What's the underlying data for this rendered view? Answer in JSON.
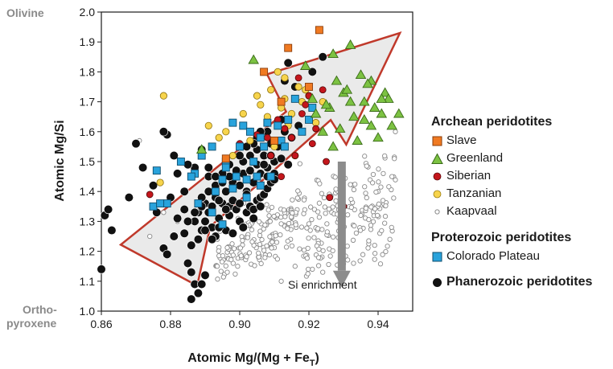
{
  "chart_data": {
    "type": "scatter",
    "xlabel_main": "Atomic Mg/(Mg + Fe",
    "xlabel_sub": "T",
    "xlabel_close": ")",
    "ylabel": "Atomic Mg/Si",
    "xlim": [
      0.86,
      0.95
    ],
    "ylim": [
      1.0,
      2.0
    ],
    "xticks": [
      "0.86",
      "0.88",
      "0.90",
      "0.92",
      "0.94"
    ],
    "yticks": [
      "1.0",
      "1.1",
      "1.2",
      "1.3",
      "1.4",
      "1.5",
      "1.6",
      "1.7",
      "1.8",
      "1.9",
      "2.0"
    ],
    "end_labels": {
      "olivine": "Olivine",
      "ortho_line1": "Ortho-",
      "ortho_line2": "pyroxene"
    },
    "annotation": "Si enrichment",
    "grid": false,
    "legend_position": "right",
    "colors": {
      "slave": "#f07a22",
      "greenland": "#7cc242",
      "siberian": "#c4161c",
      "tanzanian": "#f7d44c",
      "kaapvaal": "#9e9e9e",
      "colorado": "#29a3dc",
      "phanerozoic": "#111111",
      "arrow_outline": "#c0392b",
      "arrow_fill": "#e6e6e6",
      "si_arrow": "#8c8c8c"
    },
    "series": [
      {
        "name": "Slave",
        "marker": "square",
        "points": [
          [
            0.923,
            1.94
          ],
          [
            0.914,
            1.88
          ],
          [
            0.907,
            1.8
          ],
          [
            0.912,
            1.7
          ],
          [
            0.91,
            1.57
          ],
          [
            0.92,
            1.75
          ],
          [
            0.896,
            1.51
          ]
        ]
      },
      {
        "name": "Greenland",
        "marker": "triangle",
        "points": [
          [
            0.932,
            1.89
          ],
          [
            0.927,
            1.86
          ],
          [
            0.904,
            1.84
          ],
          [
            0.919,
            1.82
          ],
          [
            0.935,
            1.79
          ],
          [
            0.938,
            1.77
          ],
          [
            0.942,
            1.73
          ],
          [
            0.93,
            1.73
          ],
          [
            0.936,
            1.7
          ],
          [
            0.939,
            1.68
          ],
          [
            0.941,
            1.66
          ],
          [
            0.944,
            1.62
          ],
          [
            0.933,
            1.65
          ],
          [
            0.929,
            1.61
          ],
          [
            0.938,
            1.62
          ],
          [
            0.926,
            1.68
          ],
          [
            0.934,
            1.57
          ],
          [
            0.924,
            1.6
          ],
          [
            0.94,
            1.58
          ],
          [
            0.946,
            1.66
          ],
          [
            0.931,
            1.74
          ],
          [
            0.937,
            1.76
          ],
          [
            0.925,
            1.69
          ],
          [
            0.922,
            1.66
          ],
          [
            0.943,
            1.71
          ],
          [
            0.936,
            1.64
          ],
          [
            0.928,
            1.77
          ],
          [
            0.921,
            1.71
          ],
          [
            0.889,
            1.54
          ],
          [
            0.927,
            1.55
          ],
          [
            0.932,
            1.7
          ],
          [
            0.941,
            1.71
          ]
        ]
      },
      {
        "name": "Siberian",
        "marker": "circle",
        "points": [
          [
            0.874,
            1.39
          ],
          [
            0.917,
            1.78
          ],
          [
            0.92,
            1.72
          ],
          [
            0.911,
            1.64
          ],
          [
            0.922,
            1.61
          ],
          [
            0.905,
            1.59
          ],
          [
            0.915,
            1.58
          ],
          [
            0.916,
            1.52
          ],
          [
            0.912,
            1.45
          ],
          [
            0.926,
            1.38
          ],
          [
            0.93,
            1.35
          ],
          [
            0.925,
            1.5
          ],
          [
            0.908,
            1.58
          ],
          [
            0.924,
            1.74
          ],
          [
            0.918,
            1.66
          ],
          [
            0.9,
            1.56
          ],
          [
            0.913,
            1.61
          ],
          [
            0.909,
            1.52
          ],
          [
            0.921,
            1.56
          ],
          [
            0.919,
            1.69
          ]
        ]
      },
      {
        "name": "Tanzanian",
        "marker": "circle",
        "points": [
          [
            0.911,
            1.8
          ],
          [
            0.913,
            1.78
          ],
          [
            0.917,
            1.75
          ],
          [
            0.909,
            1.74
          ],
          [
            0.913,
            1.71
          ],
          [
            0.918,
            1.7
          ],
          [
            0.906,
            1.69
          ],
          [
            0.901,
            1.66
          ],
          [
            0.891,
            1.62
          ],
          [
            0.894,
            1.58
          ],
          [
            0.903,
            1.57
          ],
          [
            0.91,
            1.55
          ],
          [
            0.916,
            1.52
          ],
          [
            0.878,
            1.72
          ],
          [
            0.877,
            1.43
          ],
          [
            0.92,
            1.72
          ],
          [
            0.908,
            1.65
          ],
          [
            0.896,
            1.6
          ],
          [
            0.922,
            1.63
          ],
          [
            0.914,
            1.62
          ],
          [
            0.905,
            1.72
          ],
          [
            0.919,
            1.74
          ],
          [
            0.898,
            1.52
          ],
          [
            0.912,
            1.68
          ],
          [
            0.924,
            1.7
          ],
          [
            0.915,
            1.66
          ]
        ]
      },
      {
        "name": "Kaapvaal",
        "marker": "ring",
        "points": []
      },
      {
        "name": "Colorado Plateau",
        "marker": "square",
        "points": [
          [
            0.876,
            1.47
          ],
          [
            0.875,
            1.35
          ],
          [
            0.879,
            1.36
          ],
          [
            0.877,
            1.36
          ],
          [
            0.883,
            1.5
          ],
          [
            0.887,
            1.46
          ],
          [
            0.889,
            1.52
          ],
          [
            0.892,
            1.55
          ],
          [
            0.896,
            1.5
          ],
          [
            0.898,
            1.63
          ],
          [
            0.901,
            1.62
          ],
          [
            0.903,
            1.6
          ],
          [
            0.906,
            1.58
          ],
          [
            0.908,
            1.63
          ],
          [
            0.911,
            1.62
          ],
          [
            0.914,
            1.64
          ],
          [
            0.916,
            1.71
          ],
          [
            0.921,
            1.68
          ],
          [
            0.896,
            1.48
          ],
          [
            0.9,
            1.55
          ],
          [
            0.898,
            1.41
          ],
          [
            0.892,
            1.33
          ],
          [
            0.895,
            1.29
          ],
          [
            0.902,
            1.38
          ],
          [
            0.905,
            1.45
          ],
          [
            0.909,
            1.45
          ],
          [
            0.912,
            1.57
          ],
          [
            0.886,
            1.45
          ],
          [
            0.895,
            1.44
          ],
          [
            0.904,
            1.5
          ],
          [
            0.907,
            1.55
          ],
          [
            0.913,
            1.55
          ],
          [
            0.918,
            1.6
          ],
          [
            0.92,
            1.64
          ],
          [
            0.893,
            1.4
          ],
          [
            0.899,
            1.45
          ],
          [
            0.902,
            1.44
          ],
          [
            0.906,
            1.42
          ],
          [
            0.888,
            1.36
          ]
        ]
      },
      {
        "name": "Phanerozoic peridotites",
        "marker": "circle",
        "points": [
          [
            0.861,
            1.32
          ],
          [
            0.862,
            1.34
          ],
          [
            0.863,
            1.27
          ],
          [
            0.86,
            1.14
          ],
          [
            0.868,
            1.38
          ],
          [
            0.87,
            1.56
          ],
          [
            0.872,
            1.48
          ],
          [
            0.875,
            1.42
          ],
          [
            0.876,
            1.33
          ],
          [
            0.878,
            1.21
          ],
          [
            0.879,
            1.19
          ],
          [
            0.88,
            1.38
          ],
          [
            0.881,
            1.25
          ],
          [
            0.882,
            1.31
          ],
          [
            0.884,
            1.26
          ],
          [
            0.885,
            1.16
          ],
          [
            0.886,
            1.13
          ],
          [
            0.887,
            1.09
          ],
          [
            0.888,
            1.06
          ],
          [
            0.886,
            1.04
          ],
          [
            0.889,
            1.09
          ],
          [
            0.89,
            1.12
          ],
          [
            0.884,
            1.4
          ],
          [
            0.887,
            1.48
          ],
          [
            0.889,
            1.54
          ],
          [
            0.891,
            1.45
          ],
          [
            0.893,
            1.38
          ],
          [
            0.895,
            1.36
          ],
          [
            0.897,
            1.35
          ],
          [
            0.899,
            1.42
          ],
          [
            0.901,
            1.46
          ],
          [
            0.903,
            1.47
          ],
          [
            0.905,
            1.49
          ],
          [
            0.907,
            1.52
          ],
          [
            0.909,
            1.56
          ],
          [
            0.912,
            1.64
          ],
          [
            0.913,
            1.77
          ],
          [
            0.914,
            1.83
          ],
          [
            0.916,
            1.75
          ],
          [
            0.921,
            1.8
          ],
          [
            0.924,
            1.85
          ],
          [
            0.881,
            1.52
          ],
          [
            0.879,
            1.59
          ],
          [
            0.878,
            1.6
          ],
          [
            0.882,
            1.46
          ],
          [
            0.885,
            1.49
          ],
          [
            0.891,
            1.48
          ],
          [
            0.886,
            1.22
          ],
          [
            0.888,
            1.24
          ],
          [
            0.889,
            1.27
          ],
          [
            0.89,
            1.3
          ],
          [
            0.891,
            1.33
          ],
          [
            0.892,
            1.28
          ],
          [
            0.893,
            1.25
          ],
          [
            0.894,
            1.31
          ],
          [
            0.895,
            1.29
          ],
          [
            0.896,
            1.27
          ],
          [
            0.897,
            1.32
          ],
          [
            0.898,
            1.26
          ],
          [
            0.899,
            1.34
          ],
          [
            0.9,
            1.3
          ],
          [
            0.901,
            1.28
          ],
          [
            0.902,
            1.33
          ],
          [
            0.903,
            1.35
          ],
          [
            0.904,
            1.31
          ],
          [
            0.905,
            1.37
          ],
          [
            0.906,
            1.38
          ],
          [
            0.907,
            1.39
          ],
          [
            0.908,
            1.41
          ],
          [
            0.909,
            1.43
          ],
          [
            0.91,
            1.46
          ],
          [
            0.887,
            1.3
          ],
          [
            0.888,
            1.33
          ],
          [
            0.89,
            1.36
          ],
          [
            0.892,
            1.35
          ],
          [
            0.894,
            1.37
          ],
          [
            0.896,
            1.4
          ],
          [
            0.898,
            1.43
          ],
          [
            0.9,
            1.42
          ],
          [
            0.902,
            1.4
          ],
          [
            0.904,
            1.43
          ],
          [
            0.906,
            1.46
          ],
          [
            0.908,
            1.48
          ],
          [
            0.91,
            1.5
          ],
          [
            0.912,
            1.51
          ],
          [
            0.914,
            1.49
          ],
          [
            0.889,
            1.38
          ],
          [
            0.891,
            1.4
          ],
          [
            0.893,
            1.42
          ],
          [
            0.895,
            1.43
          ],
          [
            0.897,
            1.45
          ],
          [
            0.899,
            1.47
          ],
          [
            0.901,
            1.5
          ],
          [
            0.903,
            1.52
          ],
          [
            0.905,
            1.54
          ],
          [
            0.907,
            1.49
          ],
          [
            0.909,
            1.52
          ],
          [
            0.911,
            1.55
          ],
          [
            0.913,
            1.6
          ],
          [
            0.915,
            1.58
          ],
          [
            0.917,
            1.62
          ],
          [
            0.89,
            1.27
          ],
          [
            0.892,
            1.24
          ],
          [
            0.894,
            1.28
          ],
          [
            0.896,
            1.34
          ],
          [
            0.898,
            1.37
          ],
          [
            0.9,
            1.36
          ],
          [
            0.902,
            1.39
          ],
          [
            0.904,
            1.34
          ],
          [
            0.906,
            1.35
          ],
          [
            0.908,
            1.45
          ],
          [
            0.91,
            1.44
          ],
          [
            0.885,
            1.3
          ],
          [
            0.884,
            1.34
          ],
          [
            0.887,
            1.33
          ],
          [
            0.889,
            1.35
          ],
          [
            0.905,
            1.58
          ],
          [
            0.908,
            1.6
          ],
          [
            0.904,
            1.56
          ],
          [
            0.906,
            1.6
          ],
          [
            0.902,
            1.55
          ],
          [
            0.9,
            1.52
          ],
          [
            0.897,
            1.49
          ],
          [
            0.895,
            1.46
          ],
          [
            0.893,
            1.45
          ]
        ]
      }
    ]
  },
  "annotation_text": "Si enrichment",
  "legend": {
    "archean_heading": "Archean peridotites",
    "slave": "Slave",
    "greenland": "Greenland",
    "siberian": "Siberian",
    "tanzanian": "Tanzanian",
    "kaapvaal": "Kaapvaal",
    "proterozoic_heading": "Proterozoic peridotites",
    "colorado": "Colorado Plateau",
    "phanerozoic": "Phanerozoic peridotites"
  }
}
